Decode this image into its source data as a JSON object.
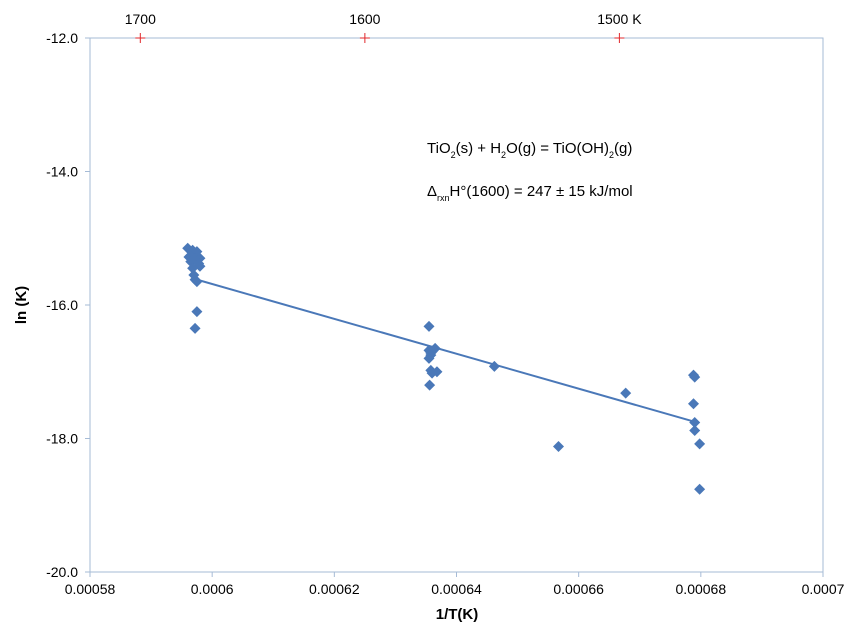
{
  "chart_data": {
    "type": "scatter",
    "xlabel": "1/T(K)",
    "ylabel": "ln (K)",
    "xlim": [
      0.00058,
      0.0007
    ],
    "ylim": [
      -20.0,
      -12.0
    ],
    "x_ticks": [
      0.00058,
      0.0006,
      0.00062,
      0.00064,
      0.00066,
      0.00068,
      0.0007
    ],
    "x_tick_labels": [
      "0.00058",
      "0.0006",
      "0.00062",
      "0.00064",
      "0.00066",
      "0.00068",
      "0.0007"
    ],
    "y_ticks": [
      -12.0,
      -14.0,
      -16.0,
      -18.0,
      -20.0
    ],
    "y_tick_labels": [
      "-12.0",
      "-14.0",
      "-16.0",
      "-18.0",
      "-20.0"
    ],
    "top_axis": {
      "ticks": [
        1700,
        1600,
        1500
      ],
      "labels": [
        "1700",
        "1600",
        "1500 K"
      ]
    },
    "grid": false,
    "legend": "none",
    "colors": {
      "points": "#4a78b8",
      "fit_line": "#4a78b8",
      "top_ticks": "#e0272b",
      "frame": "#a6bbd6"
    },
    "series": [
      {
        "points": [
          {
            "x": 0.000596,
            "y": -15.15
          },
          {
            "x": 0.0005968,
            "y": -15.18
          },
          {
            "x": 0.0005975,
            "y": -15.2
          },
          {
            "x": 0.0005962,
            "y": -15.28
          },
          {
            "x": 0.0005972,
            "y": -15.3
          },
          {
            "x": 0.000598,
            "y": -15.3
          },
          {
            "x": 0.0005965,
            "y": -15.35
          },
          {
            "x": 0.0005978,
            "y": -15.38
          },
          {
            "x": 0.000598,
            "y": -15.42
          },
          {
            "x": 0.0005968,
            "y": -15.45
          },
          {
            "x": 0.000597,
            "y": -15.55
          },
          {
            "x": 0.0005972,
            "y": -15.62
          },
          {
            "x": 0.0005975,
            "y": -15.65
          },
          {
            "x": 0.0005975,
            "y": -16.1
          },
          {
            "x": 0.0005972,
            "y": -16.35
          },
          {
            "x": 0.0006355,
            "y": -16.32
          },
          {
            "x": 0.0006355,
            "y": -16.68
          },
          {
            "x": 0.0006358,
            "y": -16.72
          },
          {
            "x": 0.000636,
            "y": -16.7
          },
          {
            "x": 0.0006362,
            "y": -16.68
          },
          {
            "x": 0.0006365,
            "y": -16.65
          },
          {
            "x": 0.0006358,
            "y": -16.75
          },
          {
            "x": 0.0006355,
            "y": -16.8
          },
          {
            "x": 0.0006358,
            "y": -16.98
          },
          {
            "x": 0.000636,
            "y": -17.02
          },
          {
            "x": 0.0006368,
            "y": -17.0
          },
          {
            "x": 0.0006356,
            "y": -17.2
          },
          {
            "x": 0.0006462,
            "y": -16.92
          },
          {
            "x": 0.0006567,
            "y": -18.12
          },
          {
            "x": 0.0006677,
            "y": -17.32
          },
          {
            "x": 0.0006788,
            "y": -17.05
          },
          {
            "x": 0.000679,
            "y": -17.08
          },
          {
            "x": 0.0006788,
            "y": -17.48
          },
          {
            "x": 0.000679,
            "y": -17.76
          },
          {
            "x": 0.000679,
            "y": -17.88
          },
          {
            "x": 0.0006798,
            "y": -18.08
          },
          {
            "x": 0.0006798,
            "y": -18.76
          }
        ]
      }
    ],
    "fit_line": {
      "x": [
        0.0005975,
        0.000679
      ],
      "y": [
        -15.62,
        -17.75
      ]
    },
    "annotations": {
      "equation": {
        "ti": "TiO",
        "s1": "2",
        "mid": "(s) + H",
        "s2": "2",
        "mid2": "O(g) = TiO(OH)",
        "s3": "2",
        "end": "(g)"
      },
      "enthalpy": {
        "delta": "Δ",
        "sub": "rxn",
        "rest": "H°(1600) = 247 ± 15 kJ/mol"
      }
    }
  }
}
